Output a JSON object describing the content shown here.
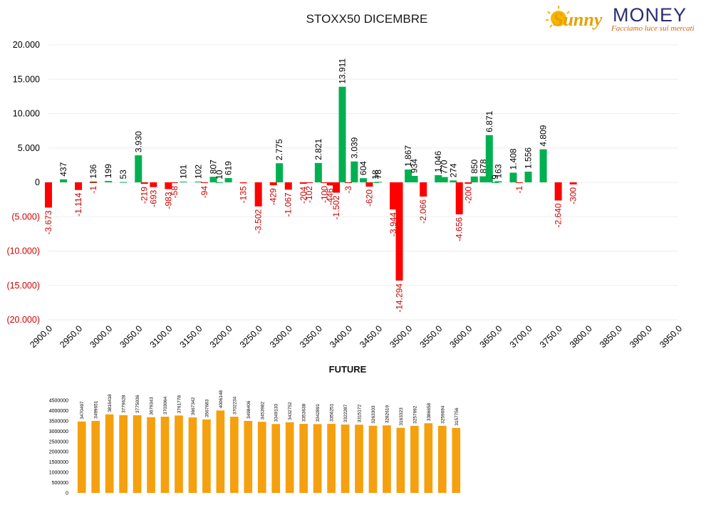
{
  "logo": {
    "brand_part1": "Sunny",
    "brand_part2": "MONEY",
    "tagline": "Facciamo luce sui mercati",
    "colors": {
      "sunny": "#e8a100",
      "money": "#2d2f6e",
      "tagline": "#d9600f"
    }
  },
  "colors": {
    "positive": "#00b050",
    "negative": "#ff0000",
    "negative_text": "#cc0000",
    "future_bar": "#f5a00f"
  },
  "chart_data": [
    {
      "type": "bar",
      "title": "STOXX50 DICEMBRE",
      "xlabel": "",
      "ylabel": "",
      "ylim": [
        -20000,
        20000
      ],
      "y_ticks": [
        "20.000",
        "15.000",
        "10.000",
        "5.000",
        "0",
        "(5.000)",
        "(10.000)",
        "(15.000)",
        "(20.000)"
      ],
      "x_ticks": [
        "2900,0",
        "2950,0",
        "3000,0",
        "3050,0",
        "3100,0",
        "3150,0",
        "3200,0",
        "3250,0",
        "3300,0",
        "3350,0",
        "3400,0",
        "3450,0",
        "3500,0",
        "3550,0",
        "3600,0",
        "3650,0",
        "3700,0",
        "3750,0",
        "3800,0",
        "3850,0",
        "3900,0",
        "3950,0"
      ],
      "x_range": [
        2900,
        3950
      ],
      "grid": true,
      "series": [
        {
          "values": [
            {
              "x": 2900,
              "y": -3673,
              "label": "-3.673"
            },
            {
              "x": 2925,
              "y": 437,
              "label": "437"
            },
            {
              "x": 2950,
              "y": -1114,
              "label": "-1.114"
            },
            {
              "x": 2975,
              "y": 136,
              "label": "136"
            },
            {
              "x": 2975,
              "y": -1,
              "label": "-1"
            },
            {
              "x": 3000,
              "y": 199,
              "label": "199"
            },
            {
              "x": 3025,
              "y": 53,
              "label": "53"
            },
            {
              "x": 3050,
              "y": 3930,
              "label": "3.930"
            },
            {
              "x": 3060,
              "y": -219,
              "label": "-219"
            },
            {
              "x": 3075,
              "y": -693,
              "label": "-693"
            },
            {
              "x": 3100,
              "y": -983,
              "label": "-983"
            },
            {
              "x": 3110,
              "y": -58,
              "label": "-58"
            },
            {
              "x": 3125,
              "y": 101,
              "label": "101"
            },
            {
              "x": 3150,
              "y": 102,
              "label": "102"
            },
            {
              "x": 3160,
              "y": -94,
              "label": "-94"
            },
            {
              "x": 3175,
              "y": 807,
              "label": "807"
            },
            {
              "x": 3185,
              "y": 10,
              "label": "10"
            },
            {
              "x": 3200,
              "y": 619,
              "label": "619"
            },
            {
              "x": 3225,
              "y": -135,
              "label": "-135"
            },
            {
              "x": 3250,
              "y": -3502,
              "label": "-3.502"
            },
            {
              "x": 3275,
              "y": -429,
              "label": "-429"
            },
            {
              "x": 3285,
              "y": 2775,
              "label": "2.775"
            },
            {
              "x": 3300,
              "y": -1067,
              "label": "-1.067"
            },
            {
              "x": 3325,
              "y": -204,
              "label": "-204"
            },
            {
              "x": 3335,
              "y": -102,
              "label": "-102"
            },
            {
              "x": 3350,
              "y": 2821,
              "label": "2.821"
            },
            {
              "x": 3360,
              "y": -100,
              "label": "-100"
            },
            {
              "x": 3370,
              "y": -446,
              "label": "-446"
            },
            {
              "x": 3380,
              "y": -1502,
              "label": "-1.502"
            },
            {
              "x": 3390,
              "y": 13911,
              "label": "13.911"
            },
            {
              "x": 3400,
              "y": -3,
              "label": "-3"
            },
            {
              "x": 3410,
              "y": 3039,
              "label": "3.039"
            },
            {
              "x": 3425,
              "y": 604,
              "label": "604"
            },
            {
              "x": 3435,
              "y": -620,
              "label": "-620"
            },
            {
              "x": 3445,
              "y": 18,
              "label": "18"
            },
            {
              "x": 3450,
              "y": 78,
              "label": "78"
            },
            {
              "x": 3475,
              "y": -3944,
              "label": "-3.944"
            },
            {
              "x": 3485,
              "y": -14294,
              "label": "-14.294"
            },
            {
              "x": 3500,
              "y": 1867,
              "label": "1.867"
            },
            {
              "x": 3510,
              "y": 934,
              "label": "934"
            },
            {
              "x": 3525,
              "y": -2066,
              "label": "-2.066"
            },
            {
              "x": 3550,
              "y": 1046,
              "label": "1.046"
            },
            {
              "x": 3560,
              "y": 770,
              "label": "770"
            },
            {
              "x": 3575,
              "y": 274,
              "label": "274"
            },
            {
              "x": 3585,
              "y": -4656,
              "label": "-4.656"
            },
            {
              "x": 3600,
              "y": -200,
              "label": "-200"
            },
            {
              "x": 3610,
              "y": 850,
              "label": "850"
            },
            {
              "x": 3625,
              "y": 878,
              "label": "878"
            },
            {
              "x": 3635,
              "y": 6871,
              "label": "6.871"
            },
            {
              "x": 3645,
              "y": 9,
              "label": "9"
            },
            {
              "x": 3650,
              "y": 163,
              "label": "163"
            },
            {
              "x": 3675,
              "y": 1408,
              "label": "1.408"
            },
            {
              "x": 3685,
              "y": -1,
              "label": "-1"
            },
            {
              "x": 3700,
              "y": 1556,
              "label": "1.556"
            },
            {
              "x": 3725,
              "y": 4809,
              "label": "4.809"
            },
            {
              "x": 3750,
              "y": -2640,
              "label": "-2.640"
            },
            {
              "x": 3775,
              "y": -300,
              "label": "-300"
            }
          ]
        }
      ]
    },
    {
      "type": "bar",
      "title": "FUTURE",
      "xlabel": "",
      "ylabel": "",
      "ylim": [
        0,
        4500000
      ],
      "y_ticks": [
        "4500000",
        "4000000",
        "3500000",
        "3000000",
        "2500000",
        "2000000",
        "1500000",
        "1000000",
        "500000",
        "0"
      ],
      "grid": false,
      "values": [
        3470497,
        3499651,
        3816418,
        3779628,
        3775036,
        3679343,
        3703064,
        3761778,
        3667342,
        3567683,
        4006148,
        3702234,
        3498406,
        3453982,
        3349133,
        3432752,
        3353638,
        3342891,
        3356251,
        3322287,
        3315172,
        3263303,
        3282619,
        3163323,
        3257692,
        3386658,
        3259694,
        3157756
      ]
    }
  ]
}
